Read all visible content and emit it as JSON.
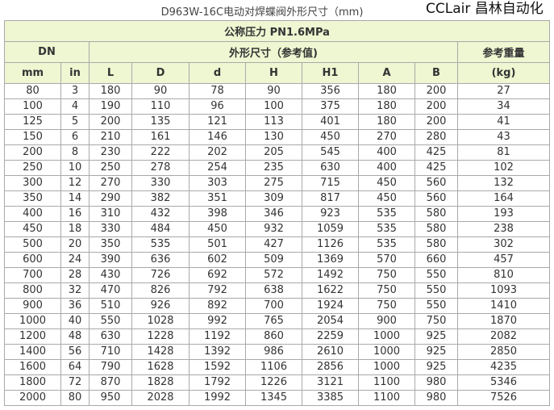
{
  "title": "D963W-16C电动对焊蝶阀外形尺寸（mm)",
  "header": {
    "pressure": "公称压力 PN1.6MPa",
    "dn": "DN",
    "dims": "外形尺寸（参考值)",
    "weight": "参考重量",
    "weight_unit": "(kg)",
    "columns": [
      "mm",
      "in",
      "L",
      "D",
      "d",
      "H",
      "H1",
      "A",
      "B"
    ]
  },
  "rows": [
    [
      "80",
      "3",
      "180",
      "90",
      "78",
      "90",
      "356",
      "180",
      "200",
      "27"
    ],
    [
      "100",
      "4",
      "190",
      "110",
      "96",
      "100",
      "375",
      "180",
      "200",
      "34"
    ],
    [
      "125",
      "5",
      "200",
      "135",
      "121",
      "113",
      "401",
      "180",
      "200",
      "41"
    ],
    [
      "150",
      "6",
      "210",
      "161",
      "146",
      "130",
      "450",
      "270",
      "280",
      "43"
    ],
    [
      "200",
      "8",
      "230",
      "222",
      "202",
      "205",
      "545",
      "400",
      "425",
      "81"
    ],
    [
      "250",
      "10",
      "250",
      "278",
      "254",
      "235",
      "630",
      "400",
      "425",
      "102"
    ],
    [
      "300",
      "12",
      "270",
      "330",
      "303",
      "275",
      "715",
      "450",
      "560",
      "132"
    ],
    [
      "350",
      "14",
      "290",
      "382",
      "351",
      "309",
      "817",
      "450",
      "560",
      "164"
    ],
    [
      "400",
      "16",
      "310",
      "432",
      "398",
      "346",
      "923",
      "535",
      "580",
      "193"
    ],
    [
      "450",
      "18",
      "330",
      "484",
      "450",
      "932",
      "1059",
      "535",
      "580",
      "238"
    ],
    [
      "500",
      "20",
      "350",
      "535",
      "501",
      "427",
      "1126",
      "535",
      "580",
      "302"
    ],
    [
      "600",
      "24",
      "390",
      "636",
      "602",
      "509",
      "1369",
      "570",
      "660",
      "457"
    ],
    [
      "700",
      "28",
      "430",
      "726",
      "692",
      "572",
      "1492",
      "750",
      "550",
      "810"
    ],
    [
      "800",
      "32",
      "470",
      "826",
      "792",
      "638",
      "1622",
      "750",
      "550",
      "1093"
    ],
    [
      "900",
      "36",
      "510",
      "926",
      "892",
      "700",
      "1924",
      "750",
      "550",
      "1410"
    ],
    [
      "1000",
      "40",
      "550",
      "1028",
      "992",
      "765",
      "2054",
      "900",
      "750",
      "1870"
    ],
    [
      "1200",
      "48",
      "630",
      "1228",
      "1192",
      "860",
      "2259",
      "1000",
      "925",
      "2082"
    ],
    [
      "1400",
      "56",
      "710",
      "1428",
      "1392",
      "986",
      "2610",
      "1000",
      "925",
      "2850"
    ],
    [
      "1600",
      "64",
      "790",
      "1628",
      "1592",
      "1106",
      "2856",
      "1000",
      "925",
      "4235"
    ],
    [
      "1800",
      "72",
      "870",
      "1828",
      "1792",
      "1226",
      "3121",
      "1100",
      "980",
      "5346"
    ],
    [
      "2000",
      "80",
      "950",
      "2028",
      "1992",
      "1345",
      "3385",
      "1100",
      "980",
      "7526"
    ]
  ],
  "watermark": "CCLair 昌林自动化"
}
